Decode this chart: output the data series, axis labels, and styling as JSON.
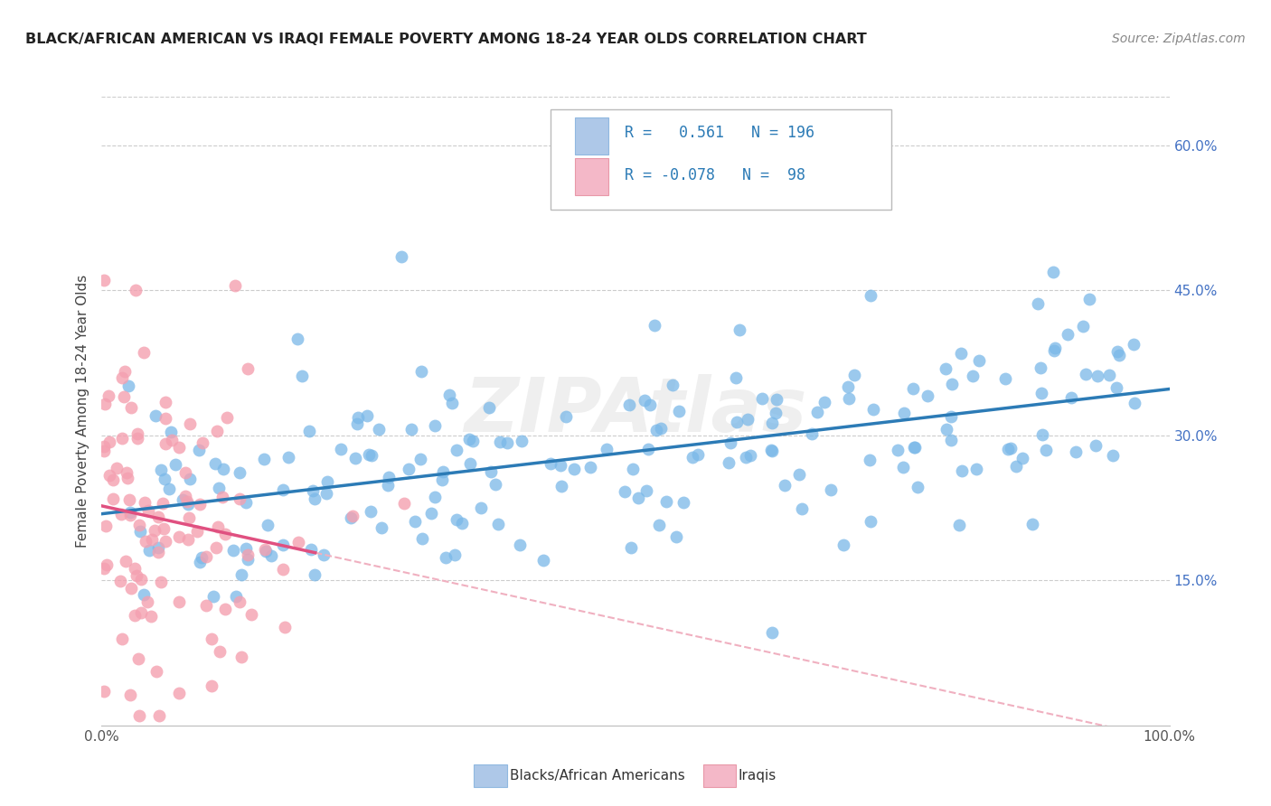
{
  "title": "BLACK/AFRICAN AMERICAN VS IRAQI FEMALE POVERTY AMONG 18-24 YEAR OLDS CORRELATION CHART",
  "source": "Source: ZipAtlas.com",
  "ylabel": "Female Poverty Among 18-24 Year Olds",
  "xlim": [
    0.0,
    1.0
  ],
  "ylim": [
    0.0,
    0.65
  ],
  "x_ticks": [
    0.0,
    0.1,
    0.2,
    0.3,
    0.4,
    0.5,
    0.6,
    0.7,
    0.8,
    0.9,
    1.0
  ],
  "x_tick_labels": [
    "0.0%",
    "",
    "",
    "",
    "",
    "",
    "",
    "",
    "",
    "",
    "100.0%"
  ],
  "y_ticks": [
    0.0,
    0.15,
    0.3,
    0.45,
    0.6
  ],
  "y_tick_labels": [
    "",
    "15.0%",
    "30.0%",
    "45.0%",
    "60.0%"
  ],
  "blue_scatter_color": "#7ab8e8",
  "blue_scatter_edge": "#7ab8e8",
  "blue_line_color": "#2c7bb6",
  "pink_scatter_color": "#f4a0b0",
  "pink_scatter_edge": "#f4a0b0",
  "pink_line_color": "#e05080",
  "pink_line_dash_color": "#f0b0c0",
  "legend_blue_fill": "#aec8e8",
  "legend_pink_fill": "#f4b8c8",
  "R_blue": 0.561,
  "N_blue": 196,
  "R_pink": -0.078,
  "N_pink": 98,
  "grid_color": "#cccccc",
  "background_color": "#ffffff",
  "watermark": "ZIPAtlas",
  "tick_label_color": "#4472c4",
  "title_color": "#222222",
  "source_color": "#888888",
  "legend_text_color": "#222222",
  "legend_value_color": "#2c7bb6"
}
